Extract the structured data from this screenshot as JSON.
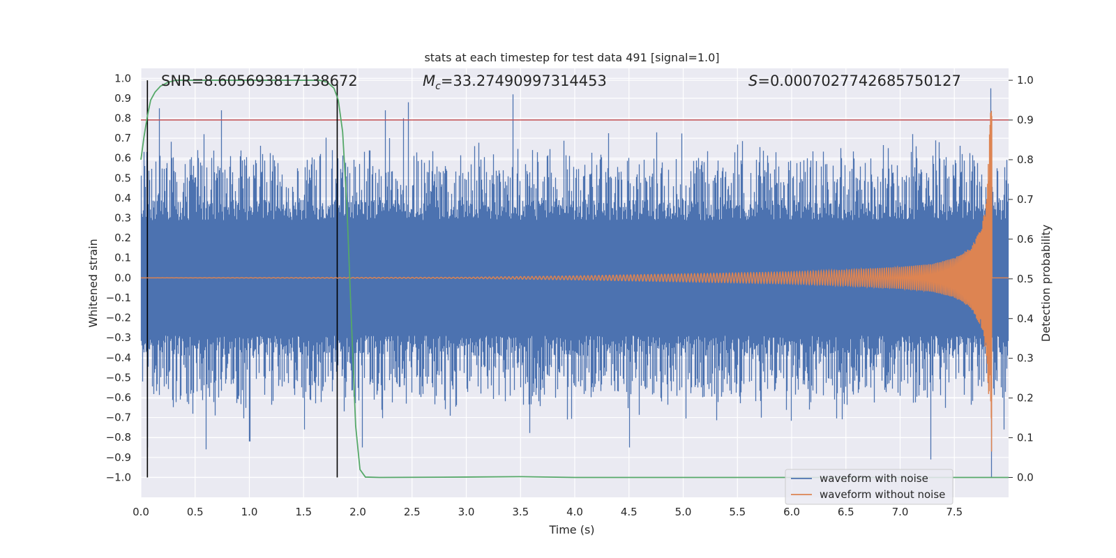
{
  "chart_data": {
    "type": "line",
    "title": "stats at each timestep for test data 491 [signal=1.0]",
    "xlabel": "Time (s)",
    "ylabel": "Whitened strain",
    "y2label": "Detection probability",
    "xlim": [
      0,
      8.0
    ],
    "ylim": [
      -1.1,
      1.05
    ],
    "y2lim": [
      -0.05,
      1.03
    ],
    "xticks": [
      0.0,
      0.5,
      1.0,
      1.5,
      2.0,
      2.5,
      3.0,
      3.5,
      4.0,
      4.5,
      5.0,
      5.5,
      6.0,
      6.5,
      7.0,
      7.5
    ],
    "xtick_labels": [
      "0.0",
      "0.5",
      "1.0",
      "1.5",
      "2.0",
      "2.5",
      "3.0",
      "3.5",
      "4.0",
      "4.5",
      "5.0",
      "5.5",
      "6.0",
      "6.5",
      "7.0",
      "7.5"
    ],
    "yticks": [
      1.0,
      0.9,
      0.8,
      0.7,
      0.6,
      0.5,
      0.4,
      0.3,
      0.2,
      0.1,
      0.0,
      -0.1,
      -0.2,
      -0.3,
      -0.4,
      -0.5,
      -0.6,
      -0.7,
      -0.8,
      -0.9,
      -1.0
    ],
    "ytick_labels": [
      "1.0",
      "0.9",
      "0.8",
      "0.7",
      "0.6",
      "0.5",
      "0.4",
      "0.3",
      "0.2",
      "0.1",
      "0.0",
      "−0.1",
      "−0.2",
      "−0.3",
      "−0.4",
      "−0.5",
      "−0.6",
      "−0.7",
      "−0.8",
      "−0.9",
      "−1.0"
    ],
    "y2ticks": [
      0.0,
      0.1,
      0.2,
      0.3,
      0.4,
      0.5,
      0.6,
      0.7,
      0.8,
      0.9,
      1.0
    ],
    "y2tick_labels": [
      "0.0",
      "0.1",
      "0.2",
      "0.3",
      "0.4",
      "0.5",
      "0.6",
      "0.7",
      "0.8",
      "0.9",
      "1.0"
    ],
    "grid": true,
    "legend": {
      "location": "lower-right",
      "entries": [
        {
          "label": "waveform with noise",
          "color": "#4c72b0"
        },
        {
          "label": "waveform without noise",
          "color": "#dd8452"
        }
      ]
    },
    "annotations": {
      "snr": "SNR=8.605693817138672",
      "mc_symbol": "M",
      "mc_sub": "c",
      "mc_value": "=33.27490997314453",
      "s_symbol": "S",
      "s_value": "=0.0007027742685750127"
    },
    "noise_series": {
      "name": "waveform with noise",
      "color": "#4c72b0",
      "t_start": 0.0,
      "t_end": 8.0,
      "typical_amplitude": 0.34,
      "peaks": [
        [
          0.17,
          0.85
        ],
        [
          0.06,
          -0.85
        ],
        [
          0.6,
          -0.86
        ],
        [
          0.74,
          0.84
        ],
        [
          0.58,
          0.72
        ],
        [
          1.0,
          -0.82
        ],
        [
          2.04,
          -0.85
        ],
        [
          2.25,
          0.84
        ],
        [
          2.42,
          0.8
        ],
        [
          2.46,
          0.88
        ],
        [
          3.43,
          0.92
        ],
        [
          4.5,
          -0.85
        ],
        [
          7.28,
          -0.91
        ],
        [
          7.83,
          0.95
        ],
        [
          7.84,
          -1.0
        ]
      ]
    },
    "clean_series": {
      "name": "waveform without noise",
      "color": "#dd8452",
      "description_points": {
        "t": [
          0,
          3.0,
          4.0,
          5.0,
          6.0,
          6.5,
          7.0,
          7.3,
          7.5,
          7.65,
          7.75,
          7.8,
          7.83,
          7.845
        ],
        "envelope": [
          0.0,
          0.003,
          0.01,
          0.02,
          0.03,
          0.04,
          0.055,
          0.07,
          0.1,
          0.15,
          0.25,
          0.4,
          0.8,
          0.92
        ]
      }
    },
    "probability_series": {
      "name": "detection probability",
      "color": "#55a868",
      "t": [
        0.0,
        0.03,
        0.06,
        0.09,
        0.13,
        0.18,
        0.25,
        0.32,
        0.4,
        0.5,
        0.8,
        1.2,
        1.5,
        1.65,
        1.72,
        1.78,
        1.82,
        1.86,
        1.9,
        1.94,
        1.98,
        2.02,
        2.07,
        2.2,
        3.0,
        3.5,
        4.0,
        5.0,
        6.0,
        7.0,
        7.5,
        7.84,
        7.85,
        8.0
      ],
      "p": [
        0.8,
        0.86,
        0.91,
        0.95,
        0.97,
        0.985,
        0.995,
        1.0,
        1.0,
        1.0,
        1.0,
        1.0,
        1.0,
        1.0,
        0.995,
        0.98,
        0.95,
        0.87,
        0.68,
        0.4,
        0.13,
        0.02,
        0.001,
        0.0,
        0.001,
        0.002,
        0.0,
        0.0,
        0.0,
        0.0,
        0.0,
        0.0,
        0.0,
        0.0
      ]
    },
    "threshold": {
      "value": 0.9,
      "axis": "right",
      "color": "#c44e52"
    },
    "vertical_lines": [
      {
        "t": 0.06,
        "color": "#000000"
      },
      {
        "t": 1.81,
        "color": "#000000"
      }
    ]
  }
}
